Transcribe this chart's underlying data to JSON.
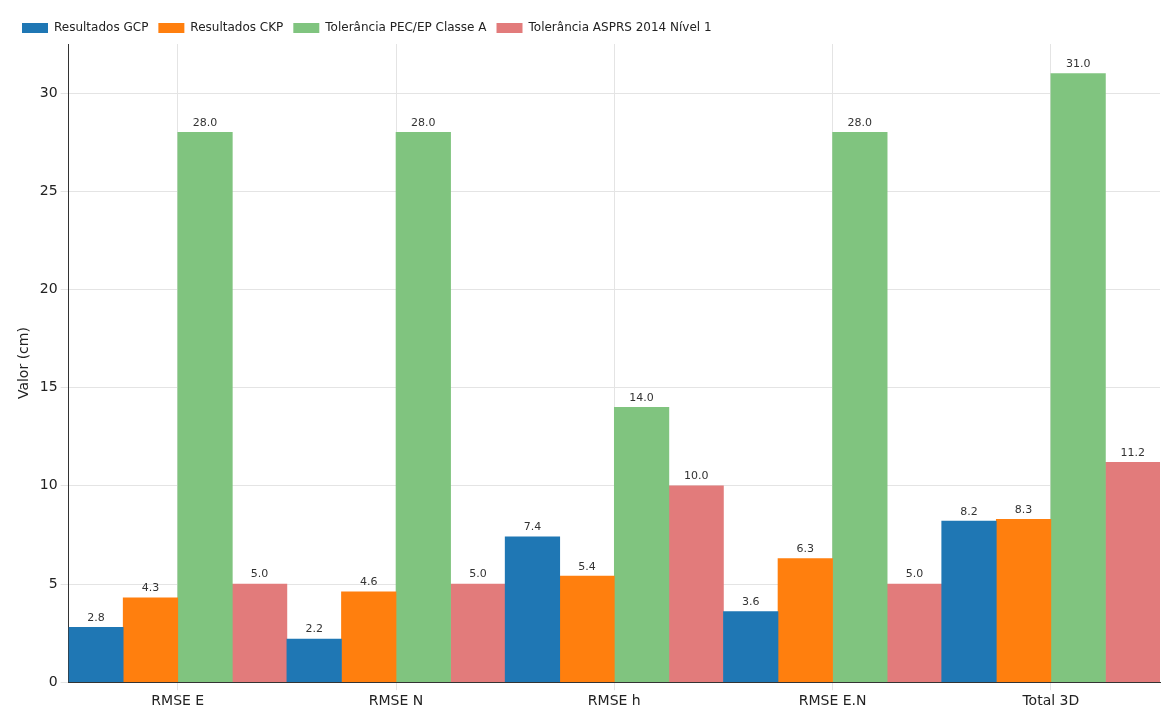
{
  "chart_data": {
    "type": "bar",
    "ylabel": "Valor (cm)",
    "categories": [
      "RMSE E",
      "RMSE N",
      "RMSE h",
      "RMSE E.N",
      "Total 3D"
    ],
    "series": [
      {
        "name": "Resultados GCP",
        "color": "#1f77b4",
        "values": [
          2.8,
          2.2,
          7.4,
          3.6,
          8.2
        ],
        "value_labels": [
          "2.8",
          "2.2",
          "7.4",
          "3.6",
          "8.2"
        ]
      },
      {
        "name": "Resultados CKP",
        "color": "#ff7f0e",
        "values": [
          4.3,
          4.6,
          5.4,
          6.3,
          8.3
        ],
        "value_labels": [
          "4.3",
          "4.6",
          "5.4",
          "6.3",
          "8.3"
        ]
      },
      {
        "name": "Tolerância PEC/EP Classe A",
        "color": "#80c47f",
        "values": [
          28,
          28,
          14,
          28,
          31
        ],
        "value_labels": [
          "28.0",
          "28.0",
          "14.0",
          "28.0",
          "31.0"
        ]
      },
      {
        "name": "Tolerância ASPRS 2014 Nível 1",
        "color": "#e27b7b",
        "values": [
          5,
          5,
          10,
          5,
          11.2
        ],
        "value_labels": [
          "5.0",
          "5.0",
          "10.0",
          "5.0",
          "11.2"
        ]
      }
    ],
    "ylim": [
      0,
      32.5
    ],
    "yticks": [
      0,
      5,
      10,
      15,
      20,
      25,
      30
    ],
    "grid": true,
    "legend": "top left"
  }
}
